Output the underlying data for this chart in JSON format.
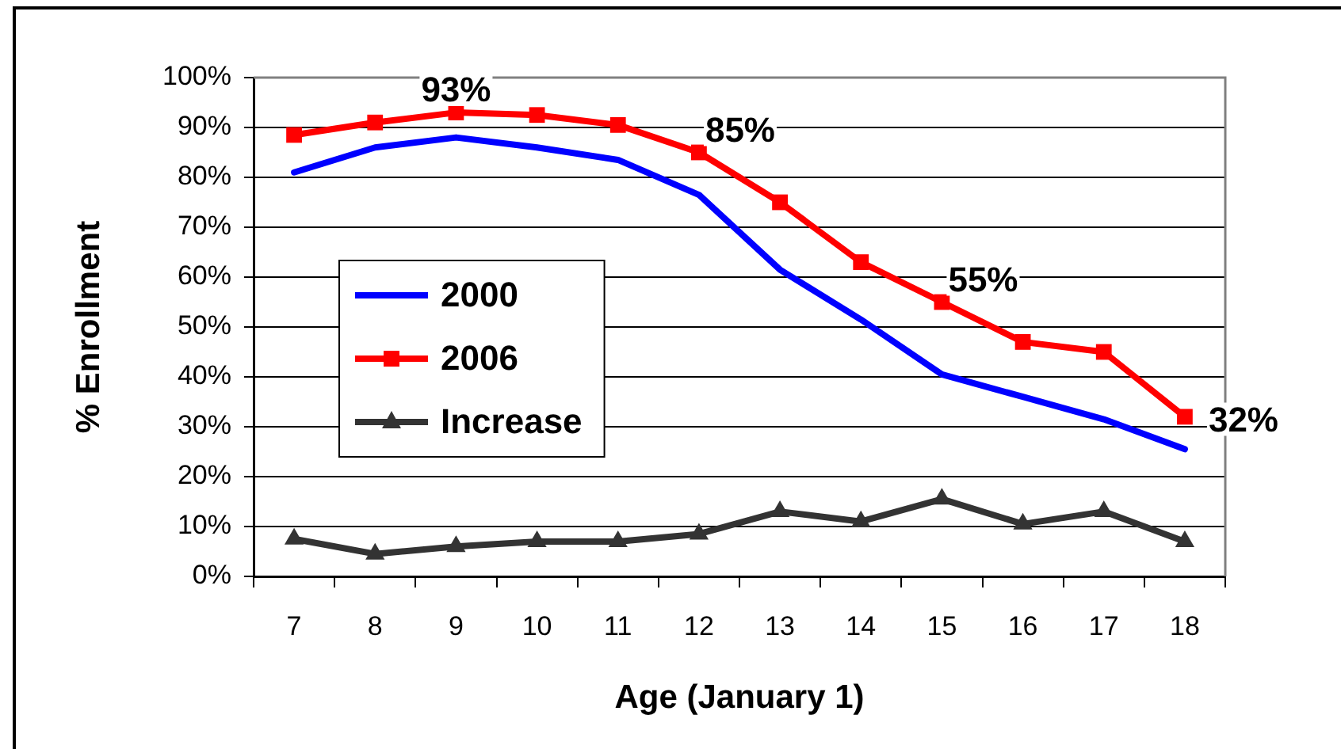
{
  "chart_data": {
    "type": "line",
    "xlabel": "Age (January 1)",
    "ylabel": "% Enrollment",
    "categories": [
      "7",
      "8",
      "9",
      "10",
      "11",
      "12",
      "13",
      "14",
      "15",
      "16",
      "17",
      "18"
    ],
    "series": [
      {
        "name": "2000",
        "color": "#0000ff",
        "marker": "none",
        "values": [
          81,
          86,
          88,
          86,
          83.5,
          76.5,
          61.5,
          51.5,
          40.5,
          36,
          31.5,
          25.5
        ]
      },
      {
        "name": "2006",
        "color": "#ff0000",
        "marker": "square",
        "values": [
          88.5,
          91,
          93,
          92.5,
          90.5,
          85,
          75,
          63,
          55,
          47,
          45,
          32
        ],
        "value_labels": [
          null,
          null,
          "93%",
          null,
          null,
          "85%",
          null,
          null,
          "55%",
          null,
          null,
          "32%"
        ]
      },
      {
        "name": "Increase",
        "color": "#333333",
        "marker": "triangle",
        "values": [
          7.5,
          4.5,
          6,
          7,
          7,
          8.5,
          13,
          11,
          15.5,
          10.5,
          13,
          7
        ]
      }
    ],
    "ylim": [
      0,
      100
    ],
    "yticks": [
      {
        "value": 0,
        "label": "0%"
      },
      {
        "value": 10,
        "label": "10%"
      },
      {
        "value": 20,
        "label": "20%"
      },
      {
        "value": 30,
        "label": "30%"
      },
      {
        "value": 40,
        "label": "40%"
      },
      {
        "value": 50,
        "label": "50%"
      },
      {
        "value": 60,
        "label": "60%"
      },
      {
        "value": 70,
        "label": "70%"
      },
      {
        "value": 80,
        "label": "80%"
      },
      {
        "value": 90,
        "label": "90%"
      },
      {
        "value": 100,
        "label": "100%"
      }
    ],
    "grid": "y",
    "legend": "left"
  }
}
